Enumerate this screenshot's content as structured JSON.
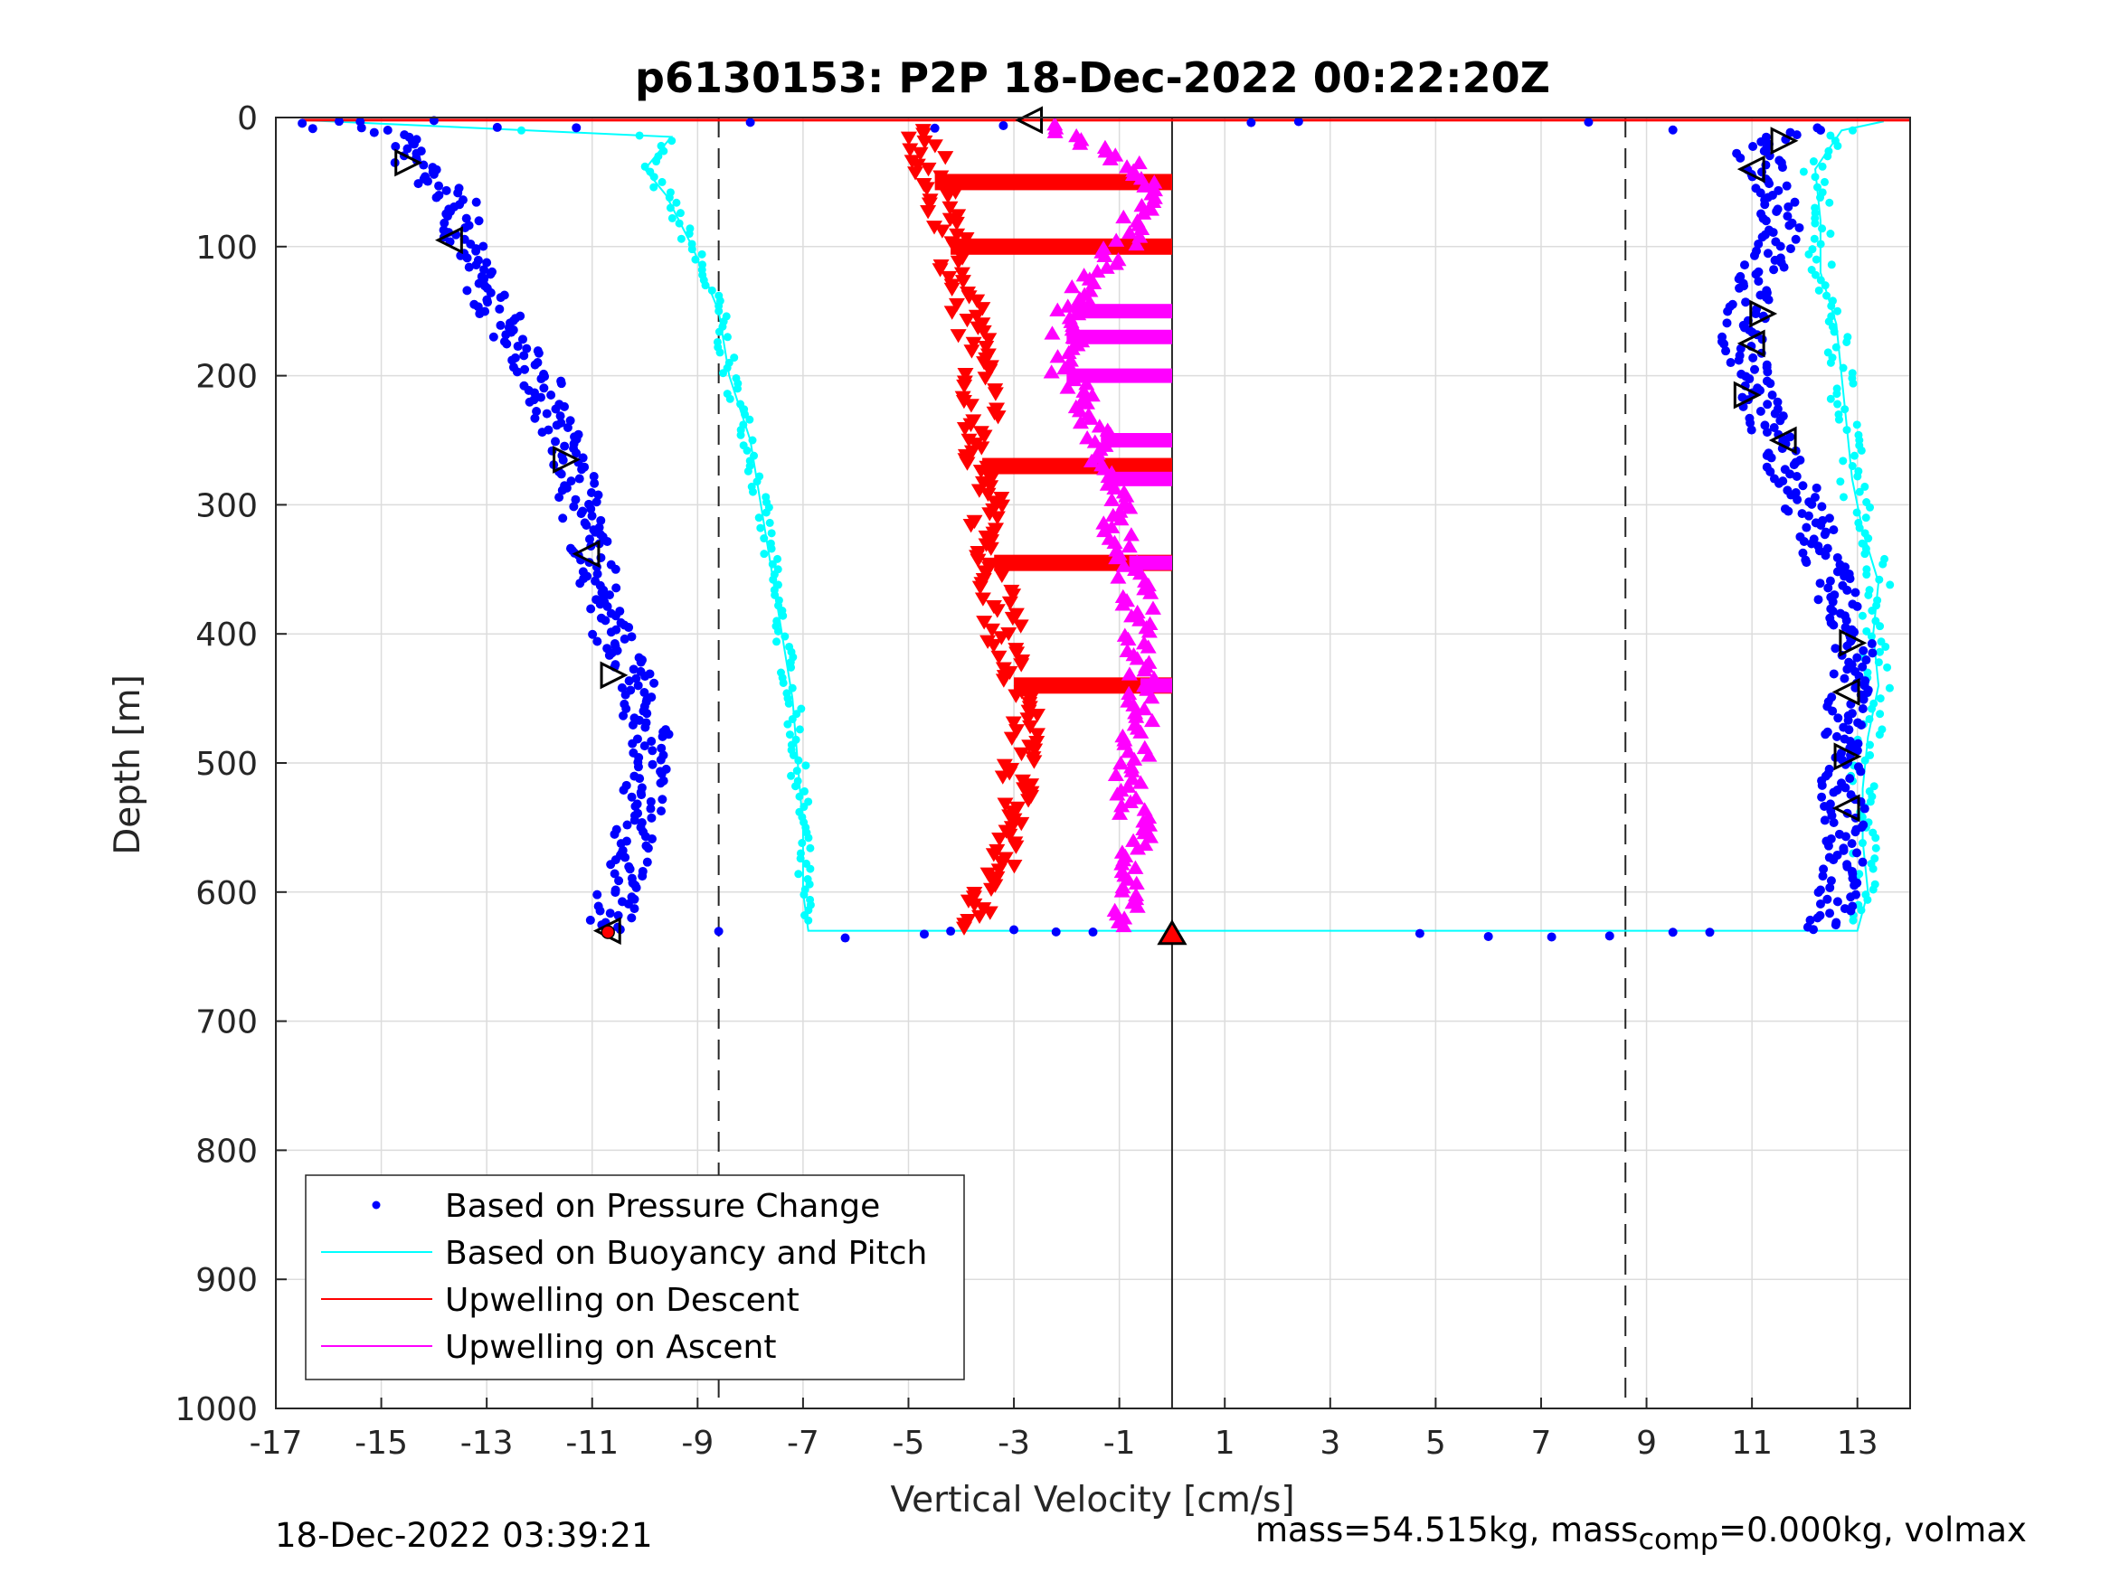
{
  "chart_data": {
    "type": "scatter",
    "title": "p6130153: P2P 18-Dec-2022 00:22:20Z",
    "xlabel": "Vertical Velocity [cm/s]",
    "ylabel": "Depth [m]",
    "xlim": [
      -17,
      14
    ],
    "ylim": [
      0,
      1000
    ],
    "y_reversed": true,
    "grid": true,
    "x_ticks": [
      -17,
      -15,
      -13,
      -11,
      -9,
      -7,
      -5,
      -3,
      -1,
      1,
      3,
      5,
      7,
      9,
      11,
      13
    ],
    "y_ticks": [
      0,
      100,
      200,
      300,
      400,
      500,
      600,
      700,
      800,
      900,
      1000
    ],
    "reference_lines": {
      "dashed_x": [
        -8.6,
        8.6
      ],
      "solid_x": [
        0
      ]
    },
    "legend": {
      "placement": "bottom-left",
      "entries": [
        "Based on Pressure Change",
        "Based on Buoyancy and Pitch",
        "Upwelling on Descent",
        "Upwelling on Ascent"
      ]
    },
    "colors": {
      "pressure": "#0000ff",
      "buoyancy": "#00ffff",
      "descent": "#ff0000",
      "ascent": "#ff00ff"
    },
    "series": [
      {
        "name": "Based on Pressure Change",
        "marker": "dot",
        "descent": {
          "depth": [
            5,
            20,
            40,
            60,
            100,
            150,
            200,
            270,
            340,
            400,
            440,
            480,
            520,
            560,
            600,
            630
          ],
          "velocity": [
            -15.5,
            -14.5,
            -14.3,
            -13.6,
            -13.4,
            -12.8,
            -12.0,
            -11.4,
            -11.0,
            -10.6,
            -10.2,
            -9.9,
            -10.0,
            -10.2,
            -10.5,
            -10.7
          ]
        },
        "ascent": {
          "depth": [
            630,
            600,
            560,
            520,
            480,
            440,
            400,
            360,
            320,
            280,
            240,
            200,
            170,
            140,
            110,
            80,
            50,
            20,
            5
          ],
          "velocity": [
            12.4,
            12.6,
            12.8,
            12.7,
            12.7,
            12.9,
            12.9,
            12.5,
            12.2,
            11.8,
            11.3,
            11.0,
            10.8,
            11.0,
            11.3,
            11.6,
            11.4,
            11.0,
            12.5
          ]
        }
      },
      {
        "name": "Based on Buoyancy and Pitch",
        "marker": "line",
        "descent": {
          "depth": [
            2,
            15,
            40,
            60,
            100,
            150,
            200,
            250,
            300,
            350,
            400,
            450,
            500,
            550,
            600,
            630
          ],
          "velocity": [
            -16.5,
            -9.5,
            -10.0,
            -9.6,
            -9.1,
            -8.6,
            -8.4,
            -8.0,
            -7.8,
            -7.6,
            -7.4,
            -7.2,
            -7.1,
            -7.0,
            -7.0,
            -6.9
          ]
        },
        "ascent": {
          "depth": [
            630,
            600,
            560,
            520,
            480,
            440,
            400,
            360,
            320,
            280,
            240,
            200,
            160,
            120,
            80,
            40,
            10,
            3
          ],
          "velocity": [
            13.0,
            13.2,
            13.1,
            13.1,
            13.2,
            13.4,
            13.3,
            13.4,
            13.1,
            12.9,
            12.8,
            12.7,
            12.6,
            12.3,
            12.3,
            12.2,
            12.7,
            13.5
          ]
        }
      },
      {
        "name": "Upwelling on Descent",
        "marker": "triangle-down",
        "depth": [
          10,
          30,
          50,
          70,
          100,
          130,
          160,
          200,
          240,
          280,
          320,
          360,
          400,
          440,
          480,
          520,
          560,
          600,
          630
        ],
        "velocity": [
          -5.0,
          -4.6,
          -4.5,
          -4.3,
          -4.2,
          -4.0,
          -3.8,
          -3.7,
          -3.6,
          -3.6,
          -3.5,
          -3.3,
          -3.2,
          -3.0,
          -2.8,
          -2.9,
          -3.1,
          -3.5,
          -3.9
        ]
      },
      {
        "name": "Upwelling on Ascent",
        "marker": "triangle-up",
        "depth": [
          630,
          600,
          560,
          520,
          480,
          440,
          400,
          360,
          320,
          280,
          240,
          200,
          160,
          130,
          100,
          70,
          50,
          30,
          10
        ],
        "velocity": [
          -1.0,
          -0.8,
          -0.6,
          -0.8,
          -0.7,
          -0.6,
          -0.6,
          -0.7,
          -1.0,
          -1.2,
          -1.4,
          -2.0,
          -2.0,
          -1.7,
          -1.0,
          -0.6,
          -0.3,
          -1.0,
          -2.0
        ]
      }
    ],
    "markers": {
      "open_triangles": [
        {
          "velocity": -2.7,
          "depth": 2
        },
        {
          "velocity": -14.5,
          "depth": 35
        },
        {
          "velocity": -13.7,
          "depth": 95
        },
        {
          "velocity": -11.5,
          "depth": 265
        },
        {
          "velocity": -11.1,
          "depth": 338
        },
        {
          "velocity": -10.6,
          "depth": 432
        },
        {
          "velocity": -10.7,
          "depth": 630
        },
        {
          "velocity": 11.6,
          "depth": 18
        },
        {
          "velocity": 11.0,
          "depth": 40
        },
        {
          "velocity": 11.2,
          "depth": 152
        },
        {
          "velocity": 11.0,
          "depth": 175
        },
        {
          "velocity": 10.9,
          "depth": 215
        },
        {
          "velocity": 11.6,
          "depth": 250
        },
        {
          "velocity": 12.9,
          "depth": 407
        },
        {
          "velocity": 12.8,
          "depth": 445
        },
        {
          "velocity": 12.8,
          "depth": 495
        },
        {
          "velocity": 12.8,
          "depth": 535
        }
      ],
      "filled_triangles": [
        {
          "velocity": 0,
          "depth": 632
        }
      ],
      "filled_points": [
        {
          "velocity": -10.7,
          "depth": 631
        }
      ]
    }
  },
  "footer": {
    "timestamp": "18-Dec-2022 03:39:21",
    "mass_text_a": "mass=54.515kg, mass",
    "mass_sub": "comp",
    "mass_text_b": "=0.000kg, volmax"
  }
}
